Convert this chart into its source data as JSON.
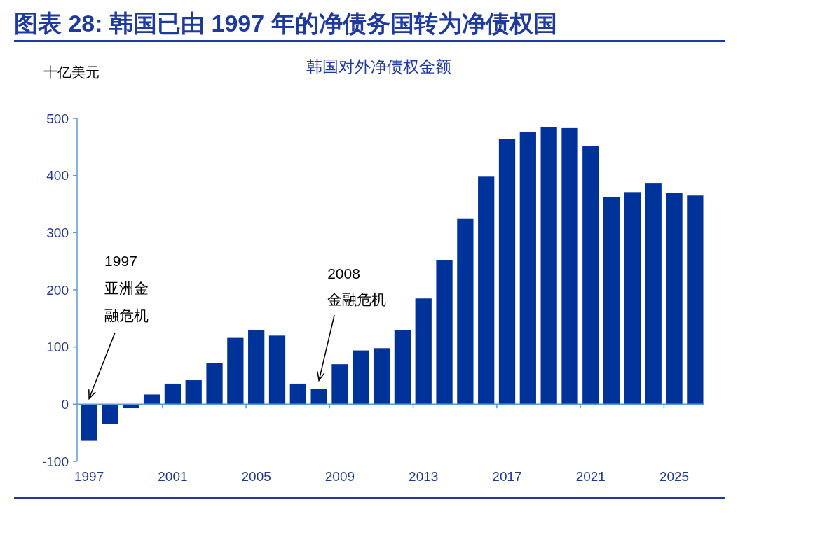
{
  "chart_data": {
    "type": "bar",
    "title": "图表 28: 韩国已由 1997 年的净债务国转为净债权国",
    "subtitle": "韩国对外净债权金额",
    "ylabel": "十亿美元",
    "categories": [
      "1997",
      null,
      null,
      null,
      "2001",
      null,
      null,
      null,
      "2005",
      null,
      null,
      null,
      "2009",
      null,
      null,
      null,
      "2013",
      null,
      null,
      null,
      "2017",
      null,
      null,
      null,
      "2021",
      null,
      null,
      null,
      "2025",
      null
    ],
    "values": [
      -64,
      -34,
      -7,
      17,
      36,
      42,
      72,
      116,
      129,
      120,
      36,
      27,
      70,
      94,
      98,
      129,
      185,
      252,
      324,
      398,
      464,
      476,
      485,
      483,
      451,
      362,
      371,
      386,
      369,
      365
    ],
    "color": "#003399",
    "ylim": [
      -100,
      500
    ],
    "yticks": [
      -100,
      0,
      100,
      200,
      300,
      400,
      500
    ],
    "ref_lines": [
      {
        "axis": "y",
        "value": 0,
        "color": "#5b9bd5"
      }
    ],
    "annotations": [
      "1997",
      "亚洲金融危机",
      "2008",
      "金融危机"
    ]
  }
}
